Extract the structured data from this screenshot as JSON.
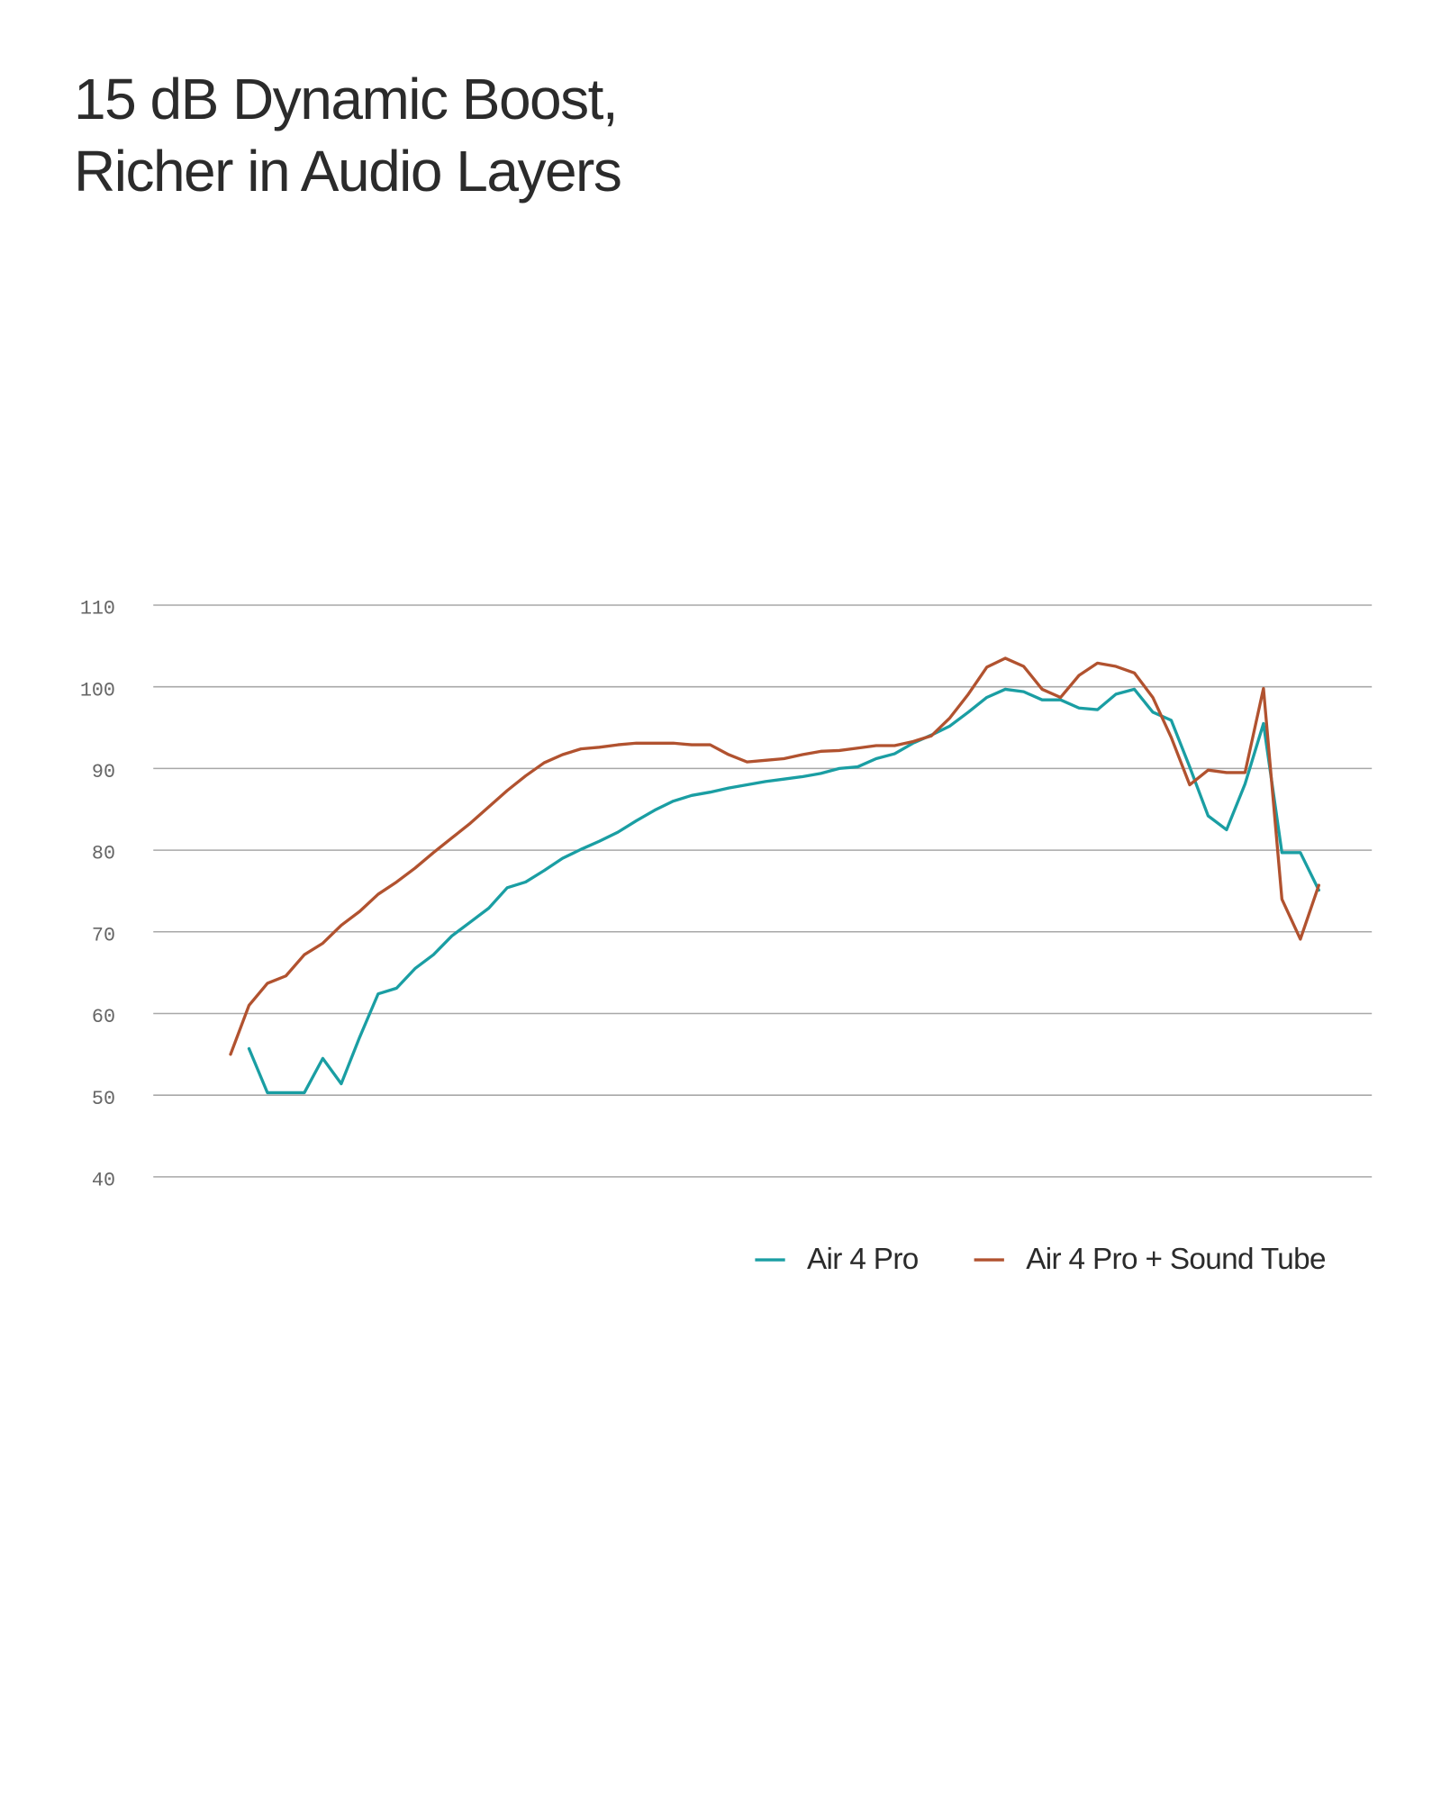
{
  "chart_data": {
    "type": "line",
    "title": "15 dB Dynamic Boost, Richer in Audio Layers",
    "categories": [
      null,
      null,
      null,
      null,
      null,
      null,
      null,
      null,
      null,
      null,
      null,
      null,
      null,
      null,
      null,
      null,
      null,
      null,
      null,
      null,
      null,
      null,
      null,
      null,
      null,
      null,
      null,
      null,
      null,
      null,
      null,
      null,
      null,
      null,
      null,
      null,
      null,
      null,
      null,
      null,
      null,
      null,
      null,
      null,
      null,
      null,
      null,
      null,
      null,
      null,
      null,
      null,
      null,
      null,
      null,
      null,
      null,
      null,
      null,
      null
    ],
    "ylim": [
      40,
      110
    ],
    "yticks": [
      40,
      50,
      60,
      70,
      80,
      90,
      100,
      110
    ],
    "grid": true,
    "series": [
      {
        "name": "Air 4 Pro",
        "color": "#1a9ea3",
        "values": [
          null,
          55.7,
          50.3,
          50.3,
          50.3,
          54.5,
          51.4,
          57.1,
          62.4,
          63.1,
          65.5,
          67.2,
          69.5,
          71.2,
          72.9,
          75.4,
          76.1,
          77.5,
          79,
          80.1,
          81.1,
          82.2,
          83.6,
          84.9,
          86,
          86.7,
          87.1,
          87.6,
          88,
          88.4,
          88.7,
          89,
          89.4,
          90,
          90.2,
          91.2,
          91.8,
          93.1,
          94.1,
          95.2,
          96.9,
          98.7,
          99.7,
          99.4,
          98.4,
          98.4,
          97.4,
          97.2,
          99.1,
          99.7,
          96.9,
          95.9,
          90.2,
          84.2,
          82.5,
          88.1,
          95.5,
          79.7,
          79.7,
          75.1
        ]
      },
      {
        "name": "Air 4 Pro + Sound Tube",
        "color": "#b1522f",
        "values": [
          55,
          61,
          63.7,
          64.6,
          67.2,
          68.6,
          70.8,
          72.5,
          74.6,
          76.1,
          77.8,
          79.7,
          81.5,
          83.3,
          85.3,
          87.3,
          89.1,
          90.7,
          91.7,
          92.4,
          92.6,
          92.9,
          93.1,
          93.1,
          93.1,
          92.9,
          92.9,
          91.7,
          90.8,
          91,
          91.2,
          91.7,
          92.1,
          92.2,
          92.5,
          92.8,
          92.8,
          93.3,
          94,
          96.2,
          99.1,
          102.4,
          103.5,
          102.5,
          99.7,
          98.7,
          101.4,
          102.9,
          102.5,
          101.7,
          98.7,
          93.8,
          88,
          89.8,
          89.5,
          89.5,
          99.8,
          74,
          69.1,
          75.7
        ]
      }
    ]
  }
}
